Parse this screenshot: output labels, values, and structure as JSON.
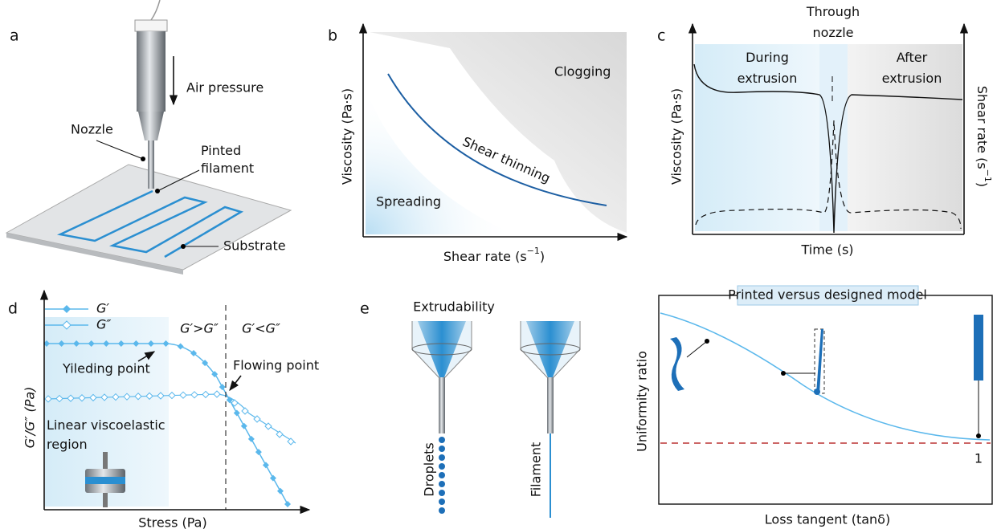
{
  "panels": {
    "a": {
      "label": "a",
      "air_pressure": "Air pressure",
      "nozzle": "Nozzle",
      "filament": [
        "Pinted",
        "filament"
      ],
      "substrate": "Substrate"
    },
    "b": {
      "label": "b",
      "y_axis": "Viscosity (Pa·s)",
      "x_axis": {
        "text": "Shear rate (s",
        "sup": "−1",
        "end": ")"
      },
      "clogging": "Clogging",
      "shear_thinning": "Shear thinning",
      "spreading": "Spreading"
    },
    "c": {
      "label": "c",
      "y_axis": "Viscosity (Pa·s)",
      "y2_axis": {
        "text": "Shear rate (s",
        "sup": "−1",
        "end": ")"
      },
      "x_axis": "Time (s)",
      "during": [
        "During",
        "extrusion"
      ],
      "through": [
        "Through",
        "nozzle"
      ],
      "after": [
        "After",
        "extrusion"
      ]
    },
    "d": {
      "label": "d",
      "legend": [
        "G′",
        "G″"
      ],
      "y_axis": "G′/G″ (Pa)",
      "x_axis": "Stress (Pa)",
      "g_greater": "G′>G″",
      "g_less": "G′<G″",
      "yielding": "Yileding point",
      "flowing": "Flowing point",
      "linear": [
        "Linear viscoelastic",
        "region"
      ]
    },
    "e": {
      "label": "e",
      "title": "Extrudability",
      "droplets": "Droplets",
      "filament": "Filament"
    },
    "f": {
      "title": "Printed versus designed model",
      "y_axis": "Uniformity ratio",
      "x_axis": "Loss tangent (tanδ)",
      "one": "1"
    }
  }
}
